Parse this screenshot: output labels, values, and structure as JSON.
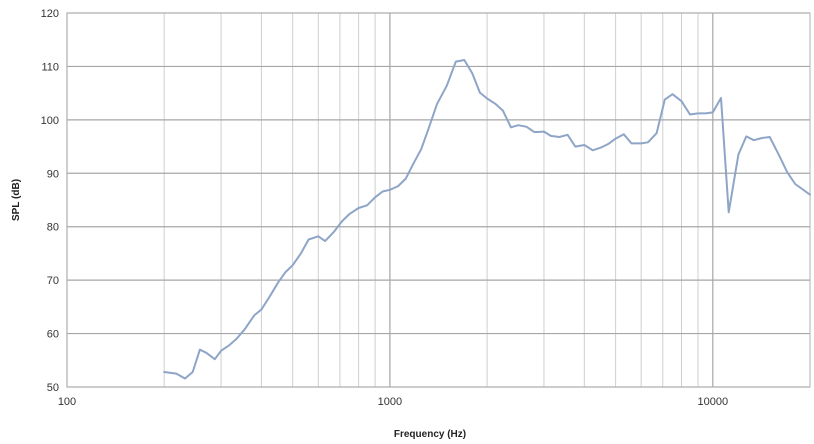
{
  "chart_data": {
    "type": "line",
    "xlabel": "Frequency (Hz)",
    "ylabel": "SPL (dB)",
    "xscale": "log",
    "xlim": [
      100,
      20000
    ],
    "ylim": [
      50,
      120
    ],
    "x_tick_labels": [
      "100",
      "1000",
      "10000"
    ],
    "y_tick_labels": [
      "50",
      "60",
      "70",
      "80",
      "90",
      "100",
      "110",
      "120"
    ],
    "grid": "on",
    "legend": "none",
    "series_color": "#8ea5c8",
    "series": [
      {
        "x": [
          200,
          218,
          232,
          245,
          258,
          270,
          287,
          300,
          318,
          335,
          355,
          380,
          400,
          425,
          450,
          475,
          500,
          530,
          560,
          600,
          630,
          670,
          710,
          750,
          800,
          850,
          900,
          950,
          1000,
          1060,
          1120,
          1180,
          1250,
          1320,
          1400,
          1500,
          1600,
          1700,
          1800,
          1900,
          2000,
          2120,
          2240,
          2370,
          2500,
          2650,
          2800,
          3000,
          3150,
          3350,
          3550,
          3750,
          4000,
          4250,
          4500,
          4750,
          5000,
          5300,
          5600,
          6000,
          6300,
          6700,
          7100,
          7500,
          8000,
          8500,
          9000,
          9500,
          10000,
          10600,
          11200,
          12000,
          12700,
          13400,
          14200,
          15000,
          16000,
          17000,
          18000,
          20000
        ],
        "y": [
          52.8,
          52.5,
          51.6,
          52.8,
          57.0,
          56.4,
          55.2,
          56.8,
          57.8,
          59.0,
          60.8,
          63.4,
          64.5,
          67.0,
          69.5,
          71.5,
          72.8,
          75.0,
          77.6,
          78.2,
          77.3,
          79.0,
          81.0,
          82.4,
          83.5,
          84.0,
          85.5,
          86.6,
          86.9,
          87.6,
          89.0,
          91.7,
          94.5,
          98.5,
          103.0,
          106.4,
          110.9,
          111.2,
          108.7,
          105.1,
          104.0,
          103.0,
          101.7,
          98.6,
          99.0,
          98.7,
          97.7,
          97.8,
          97.0,
          96.8,
          97.2,
          95.0,
          95.3,
          94.3,
          94.8,
          95.5,
          96.5,
          97.3,
          95.6,
          95.6,
          95.8,
          97.5,
          103.8,
          104.8,
          103.5,
          101.0,
          101.2,
          101.2,
          101.4,
          104.1,
          82.7,
          93.5,
          96.9,
          96.2,
          96.6,
          96.8,
          93.5,
          90.2,
          88.0,
          86.0
        ]
      }
    ]
  }
}
